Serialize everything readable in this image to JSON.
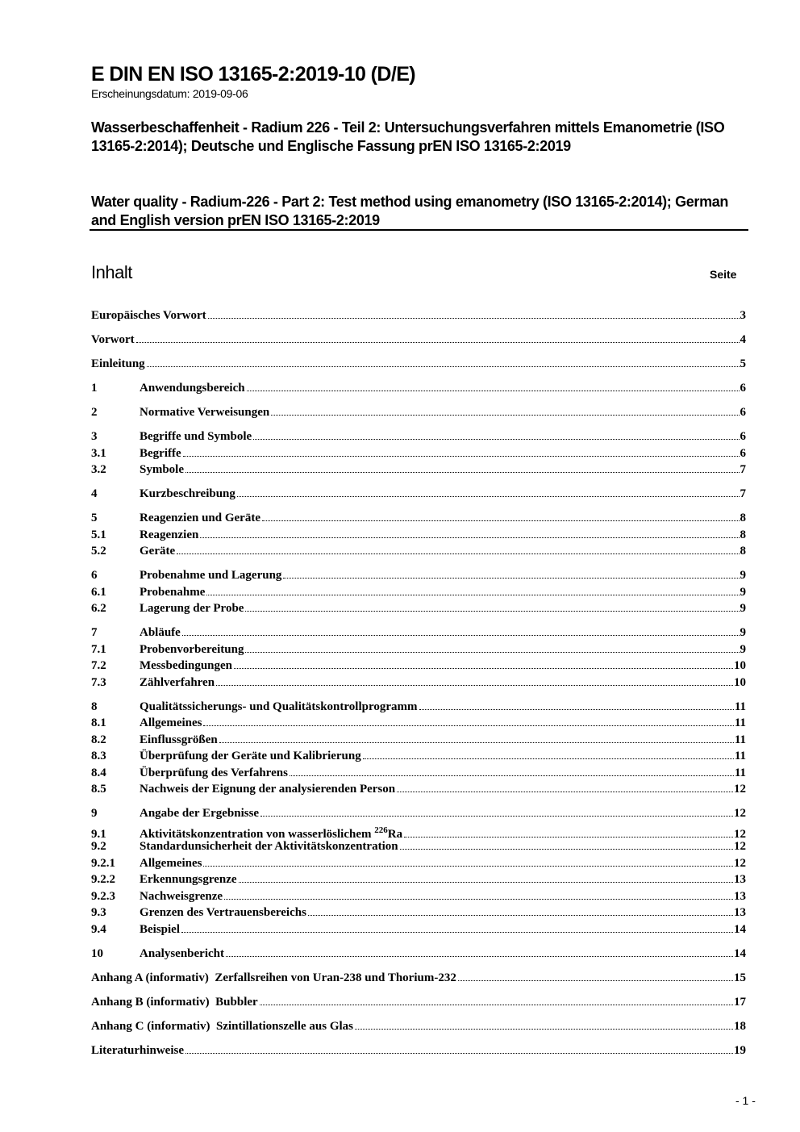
{
  "header": {
    "doc_id": "E DIN EN ISO 13165-2:2019-10 (D/E)",
    "pub_date": "Erscheinungsdatum: 2019-09-06",
    "title_de": "Wasserbeschaffenheit - Radium 226 - Teil 2: Untersuchungsverfahren mittels Emanometrie (ISO 13165-2:2014); Deutsche und Englische Fassung prEN ISO 13165-2:2019",
    "title_en": "Water quality - Radium-226 - Part 2: Test method using emanometry (ISO 13165-2:2014); German and English version prEN ISO 13165-2:2019"
  },
  "toc": {
    "heading": "Inhalt",
    "page_label": "Seite",
    "groups": [
      [
        {
          "num": "",
          "title": "Europäisches Vorwort",
          "page": "3"
        }
      ],
      [
        {
          "num": "",
          "title": "Vorwort",
          "page": "4"
        }
      ],
      [
        {
          "num": "",
          "title": "Einleitung",
          "page": "5"
        }
      ],
      [
        {
          "num": "1",
          "title": "Anwendungsbereich",
          "page": "6"
        }
      ],
      [
        {
          "num": "2",
          "title": "Normative Verweisungen",
          "page": "6"
        }
      ],
      [
        {
          "num": "3",
          "title": "Begriffe und Symbole",
          "page": "6"
        },
        {
          "num": "3.1",
          "title": "Begriffe",
          "page": "6"
        },
        {
          "num": "3.2",
          "title": "Symbole",
          "page": "7"
        }
      ],
      [
        {
          "num": "4",
          "title": "Kurzbeschreibung",
          "page": "7"
        }
      ],
      [
        {
          "num": "5",
          "title": "Reagenzien und Geräte",
          "page": "8"
        },
        {
          "num": "5.1",
          "title": "Reagenzien",
          "page": "8"
        },
        {
          "num": "5.2",
          "title": "Geräte",
          "page": "8"
        }
      ],
      [
        {
          "num": "6",
          "title": "Probenahme und Lagerung",
          "page": "9"
        },
        {
          "num": "6.1",
          "title": "Probenahme",
          "page": "9"
        },
        {
          "num": "6.2",
          "title": "Lagerung der Probe",
          "page": "9"
        }
      ],
      [
        {
          "num": "7",
          "title": "Abläufe",
          "page": "9"
        },
        {
          "num": "7.1",
          "title": "Probenvorbereitung",
          "page": "9"
        },
        {
          "num": "7.2",
          "title": "Messbedingungen",
          "page": "10"
        },
        {
          "num": "7.3",
          "title": "Zählverfahren",
          "page": "10"
        }
      ],
      [
        {
          "num": "8",
          "title": "Qualitätssicherungs- und Qualitätskontrollprogramm",
          "page": "11"
        },
        {
          "num": "8.1",
          "title": "Allgemeines",
          "page": "11"
        },
        {
          "num": "8.2",
          "title": "Einflussgrößen",
          "page": "11"
        },
        {
          "num": "8.3",
          "title": "Überprüfung der Geräte und Kalibrierung",
          "page": "11"
        },
        {
          "num": "8.4",
          "title": "Überprüfung des Verfahrens",
          "page": "11"
        },
        {
          "num": "8.5",
          "title": "Nachweis der Eignung der analysierenden Person",
          "page": "12"
        }
      ],
      [
        {
          "num": "9",
          "title": "Angabe der Ergebnisse",
          "page": "12"
        },
        {
          "num": "9.1",
          "title": "Aktivitätskonzentration von wasserlöslichem ",
          "sup": "226",
          "suffix": "Ra",
          "page": "12"
        },
        {
          "num": "9.2",
          "title": "Standardunsicherheit der Aktivitätskonzentration",
          "page": "12"
        },
        {
          "num": "9.2.1",
          "title": "Allgemeines",
          "page": "12"
        },
        {
          "num": "9.2.2",
          "title": "Erkennungsgrenze",
          "page": "13"
        },
        {
          "num": "9.2.3",
          "title": "Nachweisgrenze",
          "page": "13"
        },
        {
          "num": "9.3",
          "title": "Grenzen des Vertrauensbereichs",
          "page": "13"
        },
        {
          "num": "9.4",
          "title": "Beispiel",
          "page": "14"
        }
      ],
      [
        {
          "num": "10",
          "title": "Analysenbericht",
          "page": "14"
        }
      ],
      [
        {
          "num": "",
          "title": "Anhang A (informativ)  Zerfallsreihen von Uran-238 und Thorium-232",
          "page": "15"
        }
      ],
      [
        {
          "num": "",
          "title": "Anhang B (informativ)  Bubbler",
          "page": "17"
        }
      ],
      [
        {
          "num": "",
          "title": "Anhang C (informativ)  Szintillationszelle aus Glas",
          "page": "18"
        }
      ],
      [
        {
          "num": "",
          "title": "Literaturhinweise",
          "page": "19"
        }
      ]
    ]
  },
  "footer": {
    "page_number": "- 1 -"
  }
}
